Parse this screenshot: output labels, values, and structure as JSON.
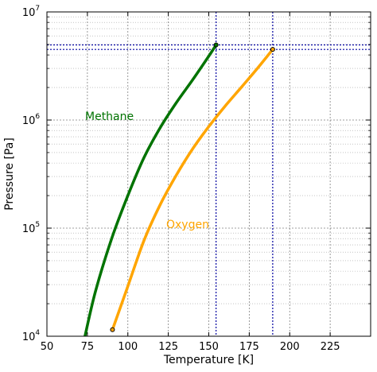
{
  "chart_data": {
    "type": "line",
    "xlabel": "Temperature [K]",
    "ylabel": "Pressure [Pa]",
    "xlim": [
      50,
      250
    ],
    "ylim": [
      10000,
      10000000
    ],
    "yscale": "log",
    "grid": true,
    "x_ticks": [
      50,
      75,
      100,
      125,
      150,
      175,
      200,
      225
    ],
    "x_tick_labels": [
      "50",
      "75",
      "100",
      "125",
      "150",
      "175",
      "200",
      "225"
    ],
    "y_major_ticks": [
      {
        "value": 10000,
        "base": "10",
        "exp": "4"
      },
      {
        "value": 100000,
        "base": "10",
        "exp": "5"
      },
      {
        "value": 1000000,
        "base": "10",
        "exp": "6"
      },
      {
        "value": 10000000,
        "base": "10",
        "exp": "7"
      }
    ],
    "series": [
      {
        "name": "Methane",
        "color": "#007300",
        "x": [
          73.5,
          80,
          90,
          100,
          110,
          120,
          130,
          140,
          150,
          154.5
        ],
        "y": [
          10000,
          26000,
          80000,
          200000,
          450000,
          850000,
          1450000,
          2350000,
          3900000,
          4950000
        ],
        "end_marker": {
          "x": 154.5,
          "y": 4950000
        }
      },
      {
        "name": "Oxygen",
        "color": "#ffa500",
        "x": [
          90.5,
          100,
          110,
          120,
          130,
          140,
          150,
          160,
          170,
          180,
          189.5
        ],
        "y": [
          11500,
          29000,
          77000,
          165000,
          310000,
          540000,
          870000,
          1340000,
          2000000,
          3000000,
          4500000
        ],
        "start_marker": {
          "x": 90.5,
          "y": 11500
        },
        "end_marker": {
          "x": 189.5,
          "y": 4500000
        }
      }
    ],
    "reference_lines": {
      "color": "#0000a0",
      "vertical_x": [
        154.5,
        189.5
      ],
      "horizontal_y": [
        4950000,
        4500000
      ]
    }
  }
}
